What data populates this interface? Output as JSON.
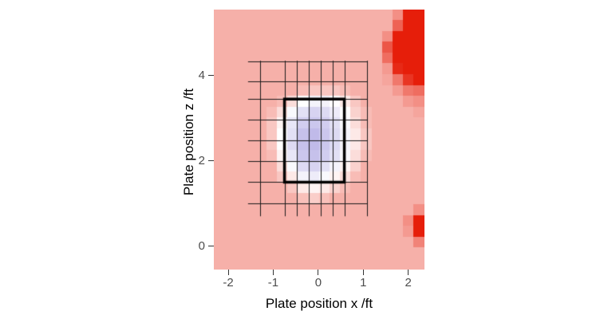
{
  "chart_data": {
    "type": "heatmap",
    "title": "",
    "xlabel": "Plate position x /ft",
    "ylabel": "Plate position z /ft",
    "x_range": [
      -2.32,
      2.36
    ],
    "y_range": [
      -0.55,
      5.55
    ],
    "x_ticks": [
      {
        "value": -2,
        "label": "-2"
      },
      {
        "value": -1,
        "label": "-1"
      },
      {
        "value": 0,
        "label": "0"
      },
      {
        "value": 1,
        "label": "1"
      },
      {
        "value": 2,
        "label": "2"
      }
    ],
    "y_ticks": [
      {
        "value": 0,
        "label": "0"
      },
      {
        "value": 2,
        "label": "2"
      },
      {
        "value": 4,
        "label": "4"
      }
    ],
    "colorscale": {
      "low": "#8C82D7",
      "mid": "#FFFFFF",
      "high": "#E61E0A",
      "domain": [
        -1,
        0,
        1
      ]
    },
    "grid": {
      "cols": 20,
      "rows": 24,
      "values": [
        [
          0.35,
          0.35,
          0.35,
          0.35,
          0.35,
          0.35,
          0.35,
          0.35,
          0.35,
          0.35,
          0.35,
          0.35,
          0.35,
          0.35,
          0.35,
          0.35,
          0.35,
          0.5,
          1,
          1
        ],
        [
          0.35,
          0.35,
          0.35,
          0.35,
          0.35,
          0.35,
          0.35,
          0.35,
          0.35,
          0.35,
          0.35,
          0.35,
          0.35,
          0.35,
          0.35,
          0.35,
          0.35,
          0.7,
          1,
          1
        ],
        [
          0.35,
          0.35,
          0.35,
          0.35,
          0.35,
          0.35,
          0.35,
          0.35,
          0.35,
          0.35,
          0.35,
          0.35,
          0.35,
          0.35,
          0.35,
          0.35,
          0.5,
          1,
          1,
          1
        ],
        [
          0.35,
          0.35,
          0.35,
          0.35,
          0.35,
          0.35,
          0.35,
          0.35,
          0.35,
          0.35,
          0.35,
          0.35,
          0.35,
          0.35,
          0.35,
          0.35,
          0.75,
          1,
          1,
          1
        ],
        [
          0.35,
          0.35,
          0.35,
          0.35,
          0.35,
          0.35,
          0.35,
          0.35,
          0.35,
          0.35,
          0.35,
          0.35,
          0.35,
          0.35,
          0.35,
          0.35,
          0.65,
          1,
          1,
          1
        ],
        [
          0.35,
          0.35,
          0.35,
          0.35,
          0.35,
          0.35,
          0.35,
          0.35,
          0.35,
          0.35,
          0.35,
          0.35,
          0.35,
          0.35,
          0.35,
          0.35,
          0.45,
          0.95,
          1,
          1
        ],
        [
          0.35,
          0.35,
          0.35,
          0.35,
          0.35,
          0.35,
          0.35,
          0.35,
          0.35,
          0.35,
          0.35,
          0.35,
          0.35,
          0.35,
          0.35,
          0.35,
          0.4,
          0.6,
          0.9,
          1
        ],
        [
          0.35,
          0.35,
          0.35,
          0.35,
          0.35,
          0.35,
          0.35,
          0.35,
          0.3,
          0.25,
          0.25,
          0.25,
          0.3,
          0.35,
          0.35,
          0.35,
          0.35,
          0.45,
          0.6,
          0.65
        ],
        [
          0.35,
          0.35,
          0.35,
          0.35,
          0.35,
          0.35,
          0.3,
          0.15,
          0,
          -0.1,
          -0.1,
          0,
          0.1,
          0.25,
          0.35,
          0.35,
          0.35,
          0.35,
          0.45,
          0.5
        ],
        [
          0.35,
          0.35,
          0.35,
          0.35,
          0.35,
          0.3,
          0.15,
          -0.05,
          -0.25,
          -0.35,
          -0.3,
          -0.15,
          0,
          0.2,
          0.3,
          0.35,
          0.35,
          0.35,
          0.35,
          0.4
        ],
        [
          0.35,
          0.35,
          0.35,
          0.35,
          0.35,
          0.25,
          0.05,
          -0.2,
          -0.4,
          -0.45,
          -0.4,
          -0.25,
          -0.05,
          0.15,
          0.3,
          0.35,
          0.35,
          0.35,
          0.35,
          0.35
        ],
        [
          0.35,
          0.35,
          0.35,
          0.35,
          0.35,
          0.25,
          0,
          -0.25,
          -0.5,
          -0.55,
          -0.45,
          -0.3,
          -0.1,
          0.1,
          0.25,
          0.35,
          0.35,
          0.35,
          0.35,
          0.35
        ],
        [
          0.35,
          0.35,
          0.35,
          0.35,
          0.35,
          0.25,
          0,
          -0.3,
          -0.5,
          -0.55,
          -0.45,
          -0.3,
          -0.1,
          0.1,
          0.25,
          0.35,
          0.35,
          0.35,
          0.35,
          0.35
        ],
        [
          0.35,
          0.35,
          0.35,
          0.35,
          0.35,
          0.3,
          0.05,
          -0.2,
          -0.45,
          -0.5,
          -0.4,
          -0.25,
          -0.05,
          0.15,
          0.3,
          0.35,
          0.35,
          0.35,
          0.35,
          0.35
        ],
        [
          0.35,
          0.35,
          0.35,
          0.35,
          0.35,
          0.35,
          0.15,
          -0.05,
          -0.3,
          -0.35,
          -0.25,
          -0.1,
          0.05,
          0.2,
          0.35,
          0.35,
          0.35,
          0.35,
          0.35,
          0.35
        ],
        [
          0.35,
          0.35,
          0.35,
          0.35,
          0.35,
          0.35,
          0.25,
          0.1,
          -0.1,
          -0.15,
          -0.05,
          0.05,
          0.15,
          0.3,
          0.35,
          0.35,
          0.35,
          0.35,
          0.35,
          0.35
        ],
        [
          0.35,
          0.35,
          0.35,
          0.35,
          0.35,
          0.35,
          0.35,
          0.25,
          0.1,
          0.05,
          0.1,
          0.2,
          0.3,
          0.35,
          0.35,
          0.35,
          0.35,
          0.35,
          0.35,
          0.35
        ],
        [
          0.35,
          0.35,
          0.35,
          0.35,
          0.35,
          0.35,
          0.35,
          0.35,
          0.28,
          0.22,
          0.28,
          0.35,
          0.35,
          0.35,
          0.35,
          0.35,
          0.35,
          0.35,
          0.35,
          0.35
        ],
        [
          0.35,
          0.35,
          0.35,
          0.35,
          0.35,
          0.35,
          0.35,
          0.35,
          0.35,
          0.35,
          0.35,
          0.35,
          0.35,
          0.35,
          0.35,
          0.35,
          0.35,
          0.35,
          0.35,
          0.5
        ],
        [
          0.35,
          0.35,
          0.35,
          0.35,
          0.35,
          0.35,
          0.35,
          0.35,
          0.35,
          0.35,
          0.35,
          0.35,
          0.35,
          0.35,
          0.35,
          0.35,
          0.35,
          0.35,
          0.5,
          1
        ],
        [
          0.35,
          0.35,
          0.35,
          0.35,
          0.35,
          0.35,
          0.35,
          0.35,
          0.35,
          0.35,
          0.35,
          0.35,
          0.35,
          0.35,
          0.35,
          0.35,
          0.35,
          0.35,
          0.45,
          1
        ],
        [
          0.35,
          0.35,
          0.35,
          0.35,
          0.35,
          0.35,
          0.35,
          0.35,
          0.35,
          0.35,
          0.35,
          0.35,
          0.35,
          0.35,
          0.35,
          0.35,
          0.35,
          0.35,
          0.35,
          0.55
        ],
        [
          0.35,
          0.35,
          0.35,
          0.35,
          0.35,
          0.35,
          0.35,
          0.35,
          0.35,
          0.35,
          0.35,
          0.35,
          0.35,
          0.35,
          0.35,
          0.35,
          0.35,
          0.35,
          0.35,
          0.35
        ],
        [
          0.35,
          0.35,
          0.35,
          0.35,
          0.35,
          0.35,
          0.35,
          0.35,
          0.35,
          0.35,
          0.35,
          0.35,
          0.35,
          0.35,
          0.35,
          0.35,
          0.35,
          0.35,
          0.35,
          0.35
        ]
      ]
    },
    "strike_zone": {
      "x": [
        -0.75,
        0.58
      ],
      "z": [
        1.5,
        3.45
      ],
      "stroke": "#000000",
      "stroke_width": 3.5
    },
    "grid_lines": {
      "vertical_x": [
        -1.3,
        -0.75,
        -0.484,
        -0.218,
        0.048,
        0.314,
        0.58,
        1.08
      ],
      "vertical_span_z": [
        0.7,
        4.35
      ],
      "horizontal_z": [
        1.0,
        1.5,
        1.99,
        2.48,
        2.96,
        3.45,
        3.86,
        4.33
      ],
      "horizontal_span_x": [
        -1.56,
        1.1
      ]
    }
  }
}
